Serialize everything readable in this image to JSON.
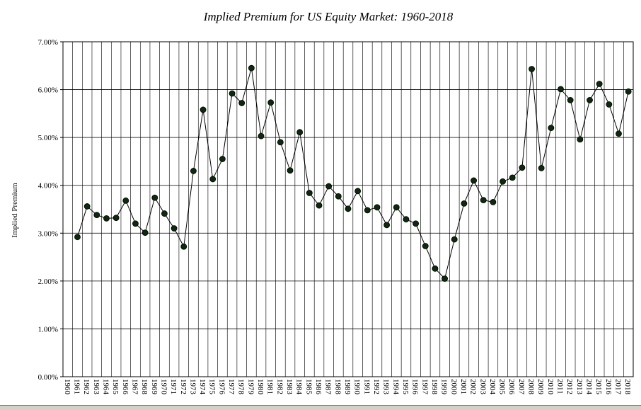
{
  "chart_data": {
    "type": "line",
    "title": "Implied Premium for  US Equity Market: 1960-2018",
    "ylabel": "Implied  Premium",
    "xlabel": "",
    "ylim": [
      0,
      0.07
    ],
    "y_ticks": [
      "0.00%",
      "1.00%",
      "2.00%",
      "3.00%",
      "4.00%",
      "5.00%",
      "6.00%",
      "7.00%"
    ],
    "grid": true,
    "marker": "circle",
    "line_color": "#000000",
    "marker_color": "#0d2a0d",
    "x": [
      "1960",
      "1961",
      "1962",
      "1963",
      "1964",
      "1965",
      "1966",
      "1967",
      "1968",
      "1969",
      "1970",
      "1971",
      "1972",
      "1973",
      "1974",
      "1975",
      "1976",
      "1977",
      "1978",
      "1979",
      "1980",
      "1981",
      "1982",
      "1983",
      "1984",
      "1985",
      "1986",
      "1987",
      "1988",
      "1989",
      "1990",
      "1991",
      "1992",
      "1993",
      "1994",
      "1995",
      "1996",
      "1997",
      "1998",
      "1999",
      "2000",
      "2001",
      "2002",
      "2003",
      "2004",
      "2005",
      "2006",
      "2007",
      "2008",
      "2009",
      "2010",
      "2011",
      "2012",
      "2013",
      "2014",
      "2015",
      "2016",
      "2017",
      "2018"
    ],
    "series": [
      {
        "values": [
          null,
          0.0292,
          0.0356,
          0.0338,
          0.0331,
          0.0332,
          0.0368,
          0.032,
          0.0301,
          0.0374,
          0.0341,
          0.031,
          0.0272,
          0.043,
          0.0558,
          0.0413,
          0.0455,
          0.0592,
          0.0572,
          0.0645,
          0.0503,
          0.0573,
          0.049,
          0.0431,
          0.0511,
          0.0384,
          0.0358,
          0.0398,
          0.0377,
          0.0351,
          0.0388,
          0.0348,
          0.0354,
          0.0317,
          0.0354,
          0.0329,
          0.032,
          0.0273,
          0.0226,
          0.0205,
          0.0287,
          0.0362,
          0.041,
          0.0369,
          0.0365,
          0.0408,
          0.0416,
          0.0437,
          0.0643,
          0.0436,
          0.052,
          0.0601,
          0.0578,
          0.0496,
          0.0578,
          0.0612,
          0.0569,
          0.0508,
          0.0596
        ]
      }
    ]
  }
}
